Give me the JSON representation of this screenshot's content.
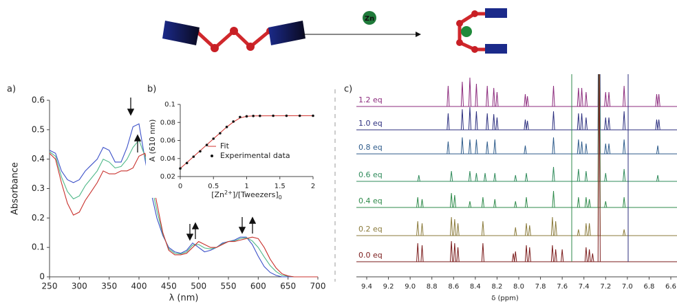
{
  "scheme": {
    "reagent": "Zn"
  },
  "chart_data": [
    {
      "type": "line",
      "panel_label": "a)",
      "x_label": "λ (nm)",
      "y_label": "Absorbance",
      "xlim": [
        250,
        700
      ],
      "ylim": [
        0,
        0.6
      ],
      "xticks": [
        250,
        300,
        350,
        400,
        450,
        500,
        550,
        600,
        650,
        700
      ],
      "yticks": [
        0,
        0.1,
        0.2,
        0.3,
        0.4,
        0.5,
        0.6
      ],
      "x": [
        250,
        260,
        270,
        280,
        290,
        300,
        310,
        320,
        330,
        340,
        350,
        360,
        370,
        380,
        390,
        400,
        410,
        420,
        430,
        440,
        450,
        460,
        470,
        480,
        490,
        500,
        510,
        520,
        530,
        540,
        550,
        560,
        570,
        580,
        590,
        600,
        610,
        620,
        630,
        640,
        650,
        660,
        670,
        680,
        690,
        700
      ],
      "series": [
        {
          "color": "#3a4fc8",
          "values": [
            0.43,
            0.42,
            0.36,
            0.33,
            0.32,
            0.33,
            0.36,
            0.38,
            0.4,
            0.44,
            0.43,
            0.39,
            0.39,
            0.44,
            0.51,
            0.52,
            0.4,
            0.29,
            0.2,
            0.14,
            0.1,
            0.085,
            0.08,
            0.09,
            0.115,
            0.1,
            0.085,
            0.09,
            0.1,
            0.115,
            0.12,
            0.125,
            0.135,
            0.135,
            0.11,
            0.07,
            0.035,
            0.015,
            0.005,
            0,
            0,
            0,
            0,
            0,
            0,
            0
          ]
        },
        {
          "color": "#4fb889",
          "values": [
            0.425,
            0.41,
            0.34,
            0.29,
            0.265,
            0.275,
            0.31,
            0.335,
            0.36,
            0.4,
            0.39,
            0.37,
            0.375,
            0.4,
            0.44,
            0.465,
            0.41,
            0.32,
            0.225,
            0.145,
            0.095,
            0.08,
            0.078,
            0.085,
            0.108,
            0.11,
            0.098,
            0.095,
            0.1,
            0.112,
            0.12,
            0.122,
            0.13,
            0.133,
            0.122,
            0.1,
            0.068,
            0.038,
            0.018,
            0.005,
            0.002,
            0,
            0,
            0,
            0,
            0
          ]
        },
        {
          "color": "#c8302c",
          "values": [
            0.42,
            0.4,
            0.32,
            0.25,
            0.21,
            0.22,
            0.26,
            0.29,
            0.32,
            0.36,
            0.35,
            0.35,
            0.36,
            0.36,
            0.37,
            0.41,
            0.42,
            0.35,
            0.25,
            0.15,
            0.09,
            0.075,
            0.075,
            0.08,
            0.1,
            0.12,
            0.11,
            0.1,
            0.1,
            0.11,
            0.12,
            0.12,
            0.125,
            0.13,
            0.135,
            0.13,
            0.1,
            0.06,
            0.03,
            0.01,
            0.003,
            0,
            0,
            0,
            0,
            0
          ]
        }
      ]
    },
    {
      "type": "fit",
      "panel_label": "b)",
      "y_label": "A (610 nm)",
      "x_label": [
        "[Zn",
        "2+",
        "]/[Tweezers]",
        "0"
      ],
      "xlim": [
        0,
        2
      ],
      "ylim": [
        0.02,
        0.1
      ],
      "xticks": [
        0,
        0.5,
        1,
        1.5,
        2
      ],
      "yticks": [
        0.02,
        0.04,
        0.06,
        0.08,
        0.1
      ],
      "series": [
        {
          "name": "Fit",
          "type": "line",
          "color": "#d0302c",
          "x": [
            0,
            0.7,
            0.8,
            0.9,
            1.0,
            1.1,
            2
          ],
          "values": [
            0.029,
            0.075,
            0.0805,
            0.085,
            0.0868,
            0.0873,
            0.0875
          ]
        },
        {
          "name": "Experimental data",
          "type": "scatter",
          "color": "#111111",
          "x": [
            0,
            0.1,
            0.2,
            0.3,
            0.4,
            0.5,
            0.6,
            0.7,
            0.8,
            0.9,
            1.0,
            1.1,
            1.2,
            1.4,
            1.6,
            1.8,
            2
          ],
          "values": [
            0.029,
            0.035,
            0.042,
            0.048,
            0.055,
            0.062,
            0.068,
            0.075,
            0.081,
            0.086,
            0.0868,
            0.0872,
            0.0873,
            0.0874,
            0.0874,
            0.0874,
            0.0874
          ]
        }
      ]
    },
    {
      "type": "spectra",
      "panel_label": "c)",
      "x_label": "δ (ppm)",
      "xlim": [
        9.4,
        6.6
      ],
      "xticks": [
        9.4,
        9.2,
        {
          "value": 9,
          "label": "9.0"
        },
        8.8,
        8.6,
        8.4,
        8.2,
        {
          "value": 8,
          "label": "8.0"
        },
        7.8,
        7.6,
        7.4,
        7.2,
        {
          "value": 7,
          "label": "7.0"
        },
        6.8,
        6.6
      ],
      "series": [
        {
          "name": "1.2 eq",
          "color": "#8b2a7c",
          "x": [
            8.65,
            8.52,
            8.45,
            8.39,
            8.29,
            8.23,
            8.2,
            7.94,
            7.92,
            7.68,
            7.45,
            7.42,
            7.38,
            7.26,
            7.2,
            7.17,
            7.03,
            6.73,
            6.71
          ],
          "values": [
            0.5,
            0.6,
            0.7,
            0.55,
            0.5,
            0.45,
            0.35,
            0.3,
            0.25,
            0.5,
            0.45,
            0.45,
            0.35,
            5,
            0.35,
            0.35,
            0.5,
            0.3,
            0.3
          ]
        },
        {
          "name": "1.0 eq",
          "color": "#2b2e7e",
          "x": [
            8.65,
            8.52,
            8.45,
            8.39,
            8.29,
            8.23,
            8.2,
            7.94,
            7.92,
            7.68,
            7.45,
            7.42,
            7.38,
            7.26,
            7.2,
            7.17,
            7.03,
            6.73,
            6.71
          ],
          "values": [
            0.4,
            0.5,
            0.55,
            0.45,
            0.4,
            0.38,
            0.3,
            0.25,
            0.22,
            0.45,
            0.4,
            0.4,
            0.3,
            5,
            0.3,
            0.3,
            0.45,
            0.25,
            0.25
          ]
        },
        {
          "name": "0.8 eq",
          "color": "#2c5a8a",
          "x": [
            8.65,
            8.52,
            8.45,
            8.39,
            8.29,
            8.22,
            7.94,
            7.68,
            7.45,
            7.42,
            7.38,
            7.26,
            7.2,
            7.17,
            7.03,
            6.72
          ],
          "values": [
            0.3,
            0.4,
            0.35,
            0.35,
            0.3,
            0.35,
            0.2,
            0.4,
            0.35,
            0.3,
            0.25,
            5,
            0.25,
            0.25,
            0.35,
            0.2
          ]
        },
        {
          "name": "0.6 eq",
          "color": "#2e8a5a",
          "x": [
            8.92,
            8.62,
            8.45,
            8.39,
            8.31,
            8.22,
            8.03,
            7.93,
            7.68,
            7.45,
            7.38,
            7.26,
            7.2,
            7.03,
            6.72
          ],
          "values": [
            0.15,
            0.25,
            0.25,
            0.2,
            0.2,
            0.2,
            0.15,
            0.2,
            0.35,
            0.3,
            0.25,
            5,
            0.2,
            0.3,
            0.15
          ]
        },
        {
          "name": "0.4 eq",
          "color": "#2e8a4a",
          "x": [
            8.93,
            8.89,
            8.62,
            8.59,
            8.45,
            8.33,
            8.22,
            8.03,
            7.93,
            7.68,
            7.45,
            7.38,
            7.35,
            7.26,
            7.2,
            7.03
          ],
          "values": [
            0.25,
            0.2,
            0.35,
            0.3,
            0.15,
            0.25,
            0.2,
            0.15,
            0.25,
            0.4,
            0.25,
            0.25,
            0.2,
            5,
            0.15,
            0.25
          ]
        },
        {
          "name": "0.2 eq",
          "color": "#8a7a3a",
          "x": [
            8.93,
            8.89,
            8.62,
            8.59,
            8.56,
            8.33,
            8.03,
            7.93,
            7.9,
            7.69,
            7.66,
            7.45,
            7.38,
            7.35,
            7.26,
            7.03
          ],
          "values": [
            0.35,
            0.3,
            0.45,
            0.4,
            0.3,
            0.35,
            0.2,
            0.3,
            0.25,
            0.45,
            0.35,
            0.15,
            0.3,
            0.3,
            5,
            0.15
          ]
        },
        {
          "name": "0.0 eq",
          "color": "#7a1a1a",
          "x": [
            8.93,
            8.89,
            8.62,
            8.59,
            8.56,
            8.33,
            8.05,
            8.03,
            7.93,
            7.9,
            7.69,
            7.66,
            7.6,
            7.38,
            7.35,
            7.32,
            7.26
          ],
          "values": [
            0.45,
            0.4,
            0.5,
            0.45,
            0.35,
            0.45,
            0.2,
            0.25,
            0.4,
            0.35,
            0.4,
            0.3,
            0.3,
            0.35,
            0.3,
            0.2,
            5
          ]
        }
      ]
    }
  ]
}
